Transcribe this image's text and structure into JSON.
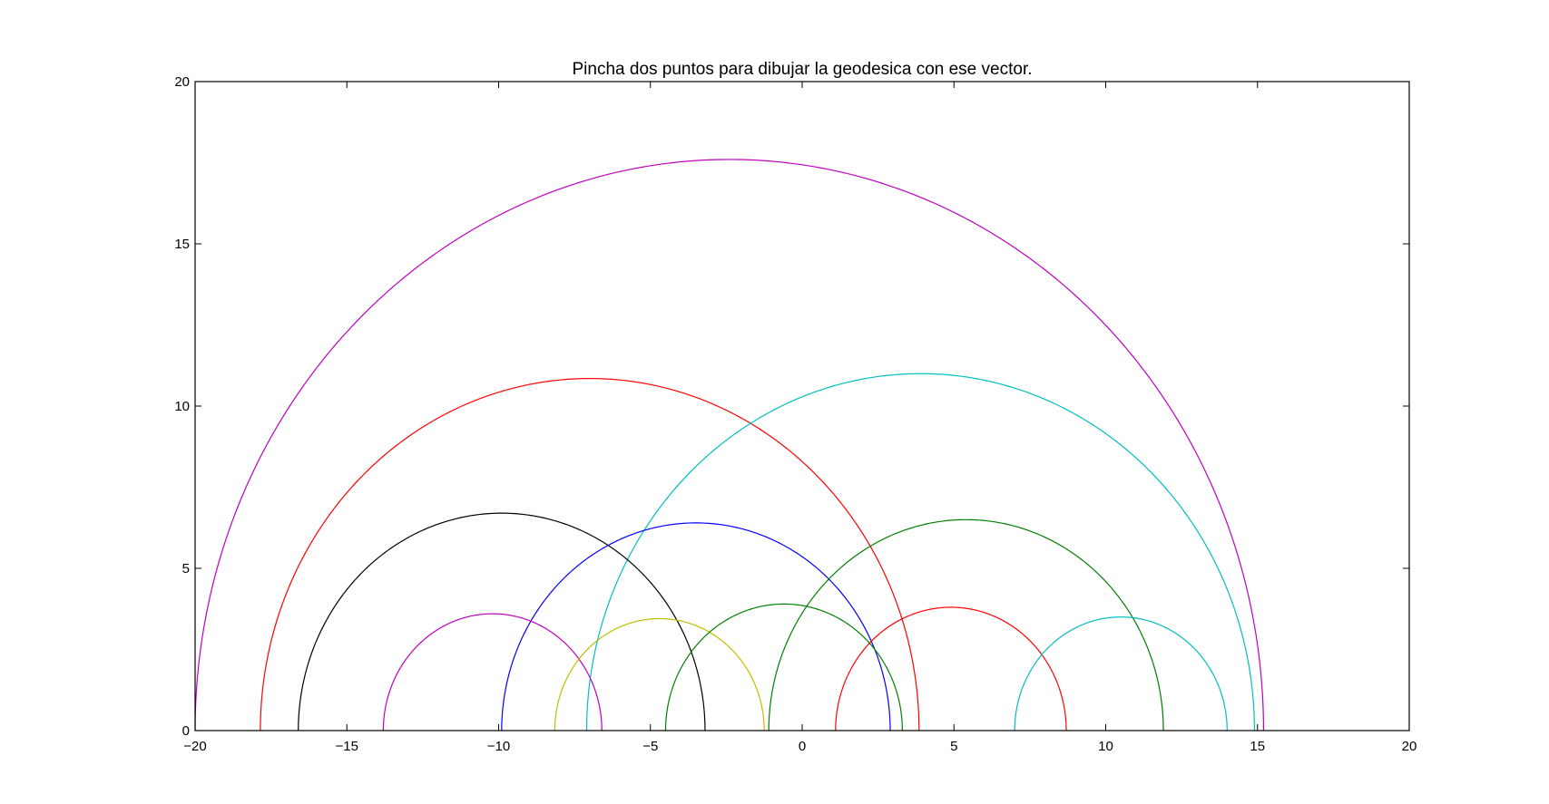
{
  "chart_data": {
    "type": "line",
    "title": "Pincha dos puntos para dibujar la geodesica con ese vector.",
    "xlabel": "",
    "ylabel": "",
    "xlim": [
      -20,
      20
    ],
    "ylim": [
      0,
      20
    ],
    "x_ticks": [
      -20,
      -15,
      -10,
      -5,
      0,
      5,
      10,
      15,
      20
    ],
    "y_ticks": [
      0,
      5,
      10,
      15,
      20
    ],
    "x_tick_labels": [
      "−20",
      "−15",
      "−10",
      "−5",
      "0",
      "5",
      "10",
      "15",
      "20"
    ],
    "y_tick_labels": [
      "0",
      "5",
      "10",
      "15",
      "20"
    ],
    "grid": false,
    "series": [
      {
        "center": -2.4,
        "radius": 17.6,
        "color": "#bf00bf"
      },
      {
        "center": -7.0,
        "radius": 10.85,
        "color": "#ff0000"
      },
      {
        "center": 3.9,
        "radius": 11.0,
        "color": "#00bfbf"
      },
      {
        "center": -9.9,
        "radius": 6.7,
        "color": "#000000"
      },
      {
        "center": -3.5,
        "radius": 6.4,
        "color": "#0000ff"
      },
      {
        "center": 5.4,
        "radius": 6.5,
        "color": "#008000"
      },
      {
        "center": -10.2,
        "radius": 3.6,
        "color": "#bf00bf"
      },
      {
        "center": -4.7,
        "radius": 3.45,
        "color": "#bfbf00"
      },
      {
        "center": -0.6,
        "radius": 3.9,
        "color": "#008000"
      },
      {
        "center": 4.9,
        "radius": 3.8,
        "color": "#ff0000"
      },
      {
        "center": 10.5,
        "radius": 3.5,
        "color": "#00bfbf"
      }
    ]
  }
}
